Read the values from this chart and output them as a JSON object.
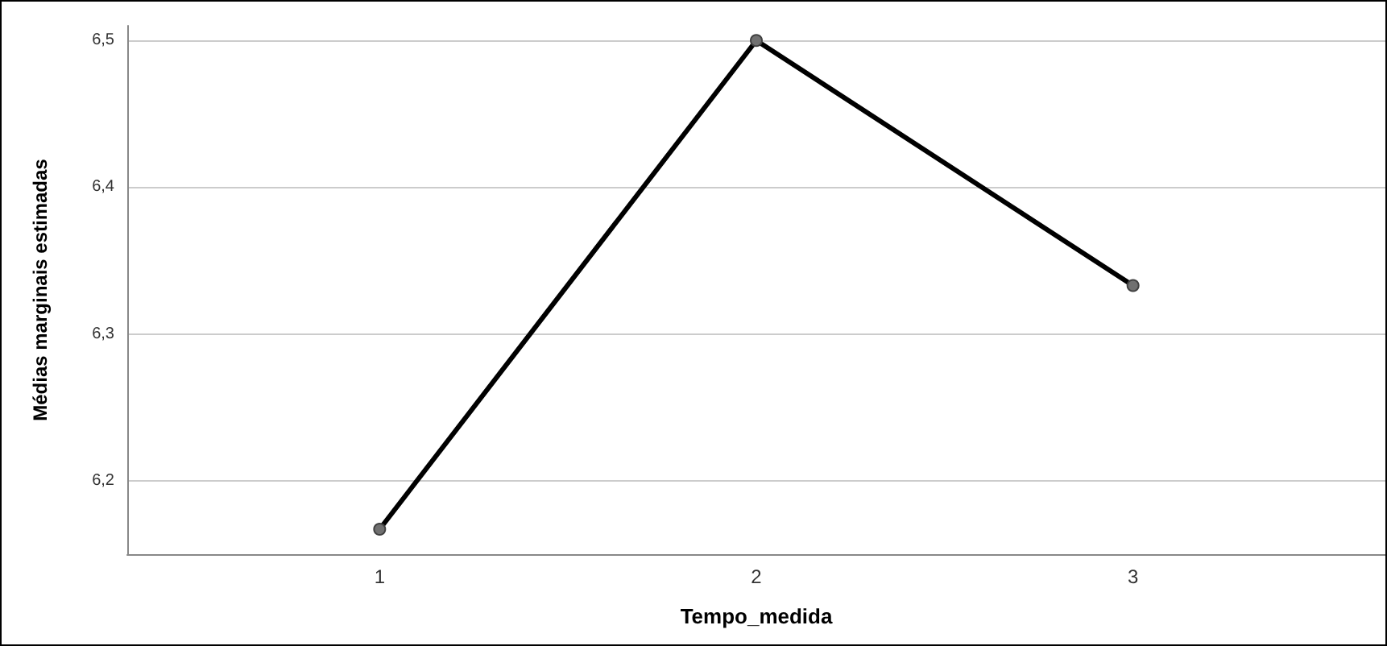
{
  "chart_data": {
    "type": "line",
    "xlabel": "Tempo_medida",
    "ylabel": "Médias marginais estimadas",
    "x": [
      1,
      2,
      3
    ],
    "xlim": [
      0.33,
      3.67
    ],
    "xticks": [
      1,
      2,
      3
    ],
    "ylim": [
      6.15,
      6.51
    ],
    "yticks": [
      {
        "value": 6.2,
        "label": "6,2"
      },
      {
        "value": 6.3,
        "label": "6,3"
      },
      {
        "value": 6.4,
        "label": "6,4"
      },
      {
        "value": 6.5,
        "label": "6,5"
      }
    ],
    "series": [
      {
        "color": "#000000",
        "values": [
          6.167,
          6.5,
          6.333
        ]
      }
    ],
    "grid": "y",
    "marker": "circle",
    "line_style": "solid"
  }
}
